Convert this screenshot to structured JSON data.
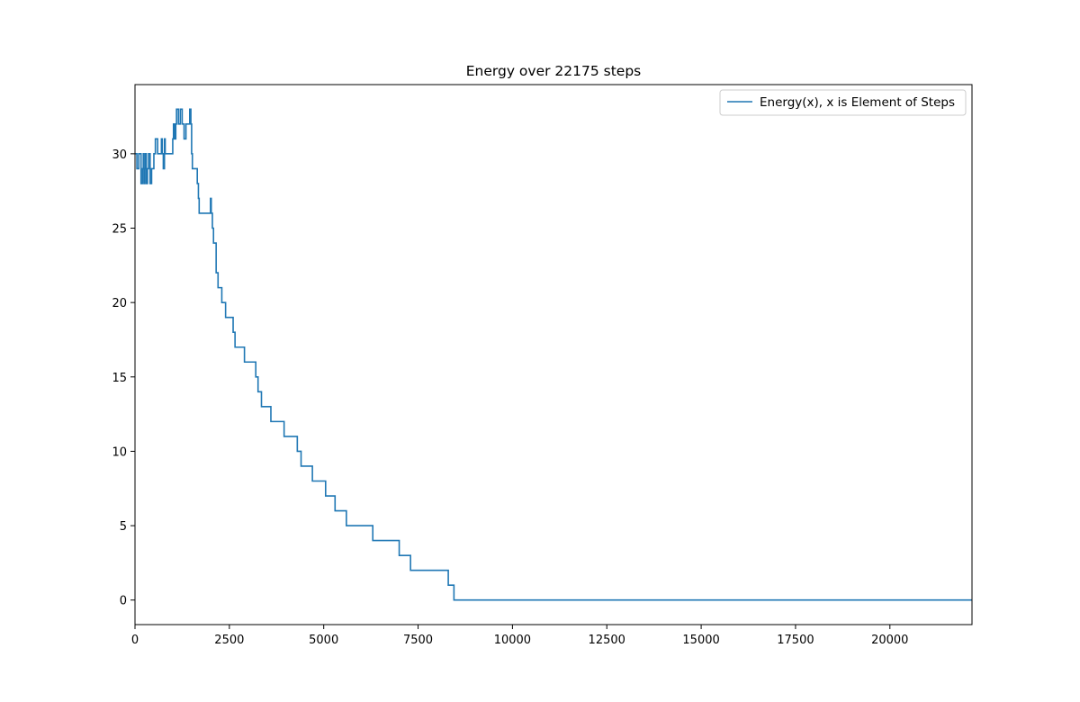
{
  "chart_data": {
    "type": "line",
    "title": "Energy over  22175 steps",
    "xlabel": "",
    "ylabel": "",
    "xlim": [
      0,
      22175
    ],
    "ylim": [
      -1.65,
      34.65
    ],
    "xticks": [
      0,
      2500,
      5000,
      7500,
      10000,
      12500,
      15000,
      17500,
      20000
    ],
    "yticks": [
      0,
      5,
      10,
      15,
      20,
      25,
      30
    ],
    "grid": false,
    "legend_position": "upper-right",
    "drawstyle": "steps",
    "series": [
      {
        "name": "Energy(x), x is Element of Steps",
        "color": "#1f77b4",
        "x": [
          0,
          50,
          100,
          160,
          200,
          220,
          240,
          260,
          280,
          300,
          330,
          360,
          400,
          440,
          500,
          540,
          600,
          650,
          700,
          720,
          750,
          780,
          800,
          850,
          900,
          950,
          1000,
          1020,
          1050,
          1080,
          1100,
          1150,
          1200,
          1250,
          1300,
          1350,
          1400,
          1450,
          1480,
          1500,
          1520,
          1550,
          1600,
          1650,
          1680,
          1700,
          1750,
          1800,
          1900,
          2000,
          2020,
          2050,
          2080,
          2100,
          2150,
          2200,
          2300,
          2400,
          2500,
          2600,
          2650,
          2700,
          2900,
          3100,
          3200,
          3260,
          3350,
          3500,
          3600,
          3800,
          3950,
          4100,
          4300,
          4400,
          4500,
          4700,
          4900,
          5050,
          5300,
          5600,
          6000,
          6300,
          7000,
          7300,
          8300,
          8350,
          8450,
          22175
        ],
        "values": [
          30,
          29,
          30,
          28,
          29,
          30,
          28,
          29,
          30,
          28,
          29,
          30,
          28,
          29,
          30,
          31,
          30,
          30,
          31,
          30,
          29,
          31,
          30,
          30,
          30,
          30,
          31,
          32,
          31,
          32,
          33,
          32,
          33,
          32,
          31,
          32,
          32,
          33,
          32,
          30,
          29,
          29,
          29,
          28,
          27,
          26,
          26,
          26,
          26,
          27,
          26,
          25,
          24,
          24,
          22,
          21,
          20,
          19,
          19,
          18,
          17,
          17,
          16,
          16,
          15,
          14,
          13,
          13,
          12,
          12,
          11,
          11,
          10,
          9,
          9,
          8,
          8,
          7,
          6,
          5,
          5,
          4,
          3,
          2,
          1,
          1,
          0,
          0
        ]
      }
    ]
  }
}
